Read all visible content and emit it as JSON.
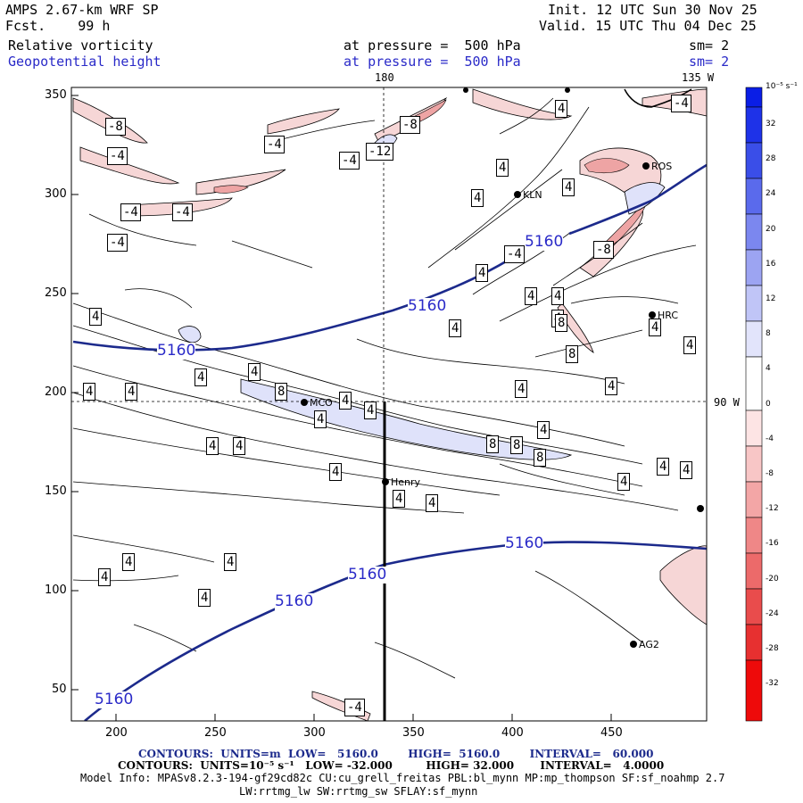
{
  "header": {
    "model": "AMPS 2.67-km WRF SP",
    "forecast": "Fcst.    99 h",
    "init": "Init. 12 UTC Sun 30 Nov 25",
    "valid": "Valid. 15 UTC Thu 04 Dec 25",
    "field1_name": "Relative vorticity",
    "field1_level": "at pressure =  500 hPa",
    "field1_smooth": "sm= 2",
    "field2_name": "Geopotential height",
    "field2_level": "at pressure =  500 hPa",
    "field2_smooth": "sm= 2"
  },
  "map": {
    "lon_label_top": "180",
    "lon_label_top_right": "135 W",
    "lon_label_right": "90 W",
    "x_ticks": [
      "200",
      "250",
      "300",
      "350",
      "400",
      "450"
    ],
    "y_ticks": [
      "350",
      "300",
      "250",
      "200",
      "150",
      "100",
      "50"
    ],
    "stations": [
      {
        "name": "KLN"
      },
      {
        "name": "ROS"
      },
      {
        "name": "HRC"
      },
      {
        "name": "MCO"
      },
      {
        "name": "Henry"
      },
      {
        "name": "AG2"
      }
    ],
    "height_contour_label": "5160",
    "vort_labels": [
      "-8",
      "-4",
      "4",
      "8",
      "-12"
    ]
  },
  "colorbar": {
    "unit": "10⁻⁵ s⁻¹",
    "ticks": [
      "32",
      "28",
      "24",
      "20",
      "16",
      "12",
      "8",
      "4",
      "0",
      "-4",
      "-8",
      "-12",
      "-16",
      "-20",
      "-24",
      "-28",
      "-32"
    ]
  },
  "footer": {
    "contours1": "CONTOURS:  UNITS=m  LOW=   5160.0        HIGH=  5160.0        INTERVAL=   60.000",
    "contours2": "CONTOURS:  UNITS=10⁻⁵ s⁻¹   LOW= -32.000         HIGH= 32.000       INTERVAL=   4.0000",
    "model_info": "Model Info: MPASv8.2.3-194-gf29cd82c CU:cu_grell_freitas PBL:bl_mynn MP:mp_thompson SF:sf_noahmp 2.7",
    "model_info2": "LW:rrtmg_lw SW:rrtmg_sw SFLAY:sf_mynn"
  }
}
